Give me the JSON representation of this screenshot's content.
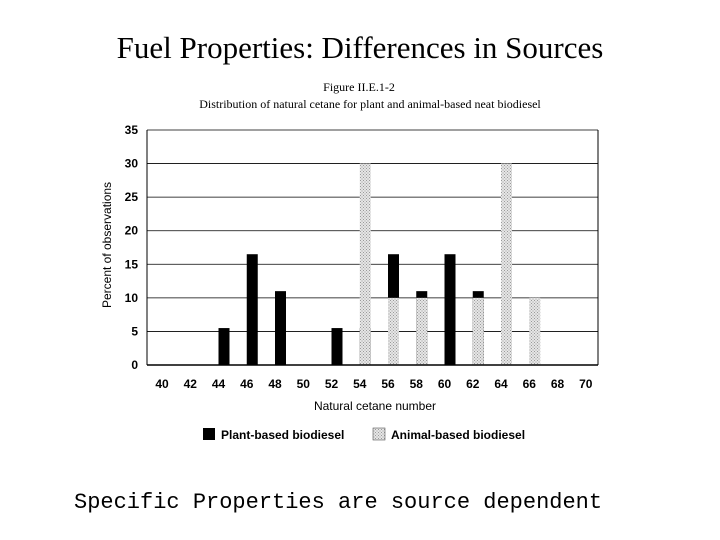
{
  "slide": {
    "title": "Fuel Properties: Differences in Sources",
    "footer": "Specific Properties are source dependent"
  },
  "chart_data": {
    "type": "bar",
    "figure_label": "Figure II.E.1-2",
    "title": "Distribution of natural cetane for plant and animal-based neat biodiesel",
    "xlabel": "Natural cetane number",
    "ylabel": "Percent of observations",
    "categories": [
      "40",
      "42",
      "44",
      "46",
      "48",
      "50",
      "52",
      "54",
      "56",
      "58",
      "60",
      "62",
      "64",
      "66",
      "68",
      "70"
    ],
    "ylim": [
      0,
      35
    ],
    "yticks": [
      0,
      5,
      10,
      15,
      20,
      25,
      30,
      35
    ],
    "grid": "horizontal",
    "legend_position": "bottom",
    "series": [
      {
        "name": "Plant-based biodiesel",
        "color": "#000000",
        "values": [
          0,
          0,
          5.5,
          16.5,
          11,
          0,
          5.5,
          5.5,
          16.5,
          11,
          16.5,
          11,
          0,
          0,
          0,
          0
        ]
      },
      {
        "name": "Animal-based biodiesel",
        "color": "#cfcfcf",
        "values": [
          0,
          0,
          0,
          0,
          0,
          0,
          0,
          30,
          10,
          10,
          0,
          10,
          30,
          10,
          0,
          0
        ]
      }
    ]
  }
}
